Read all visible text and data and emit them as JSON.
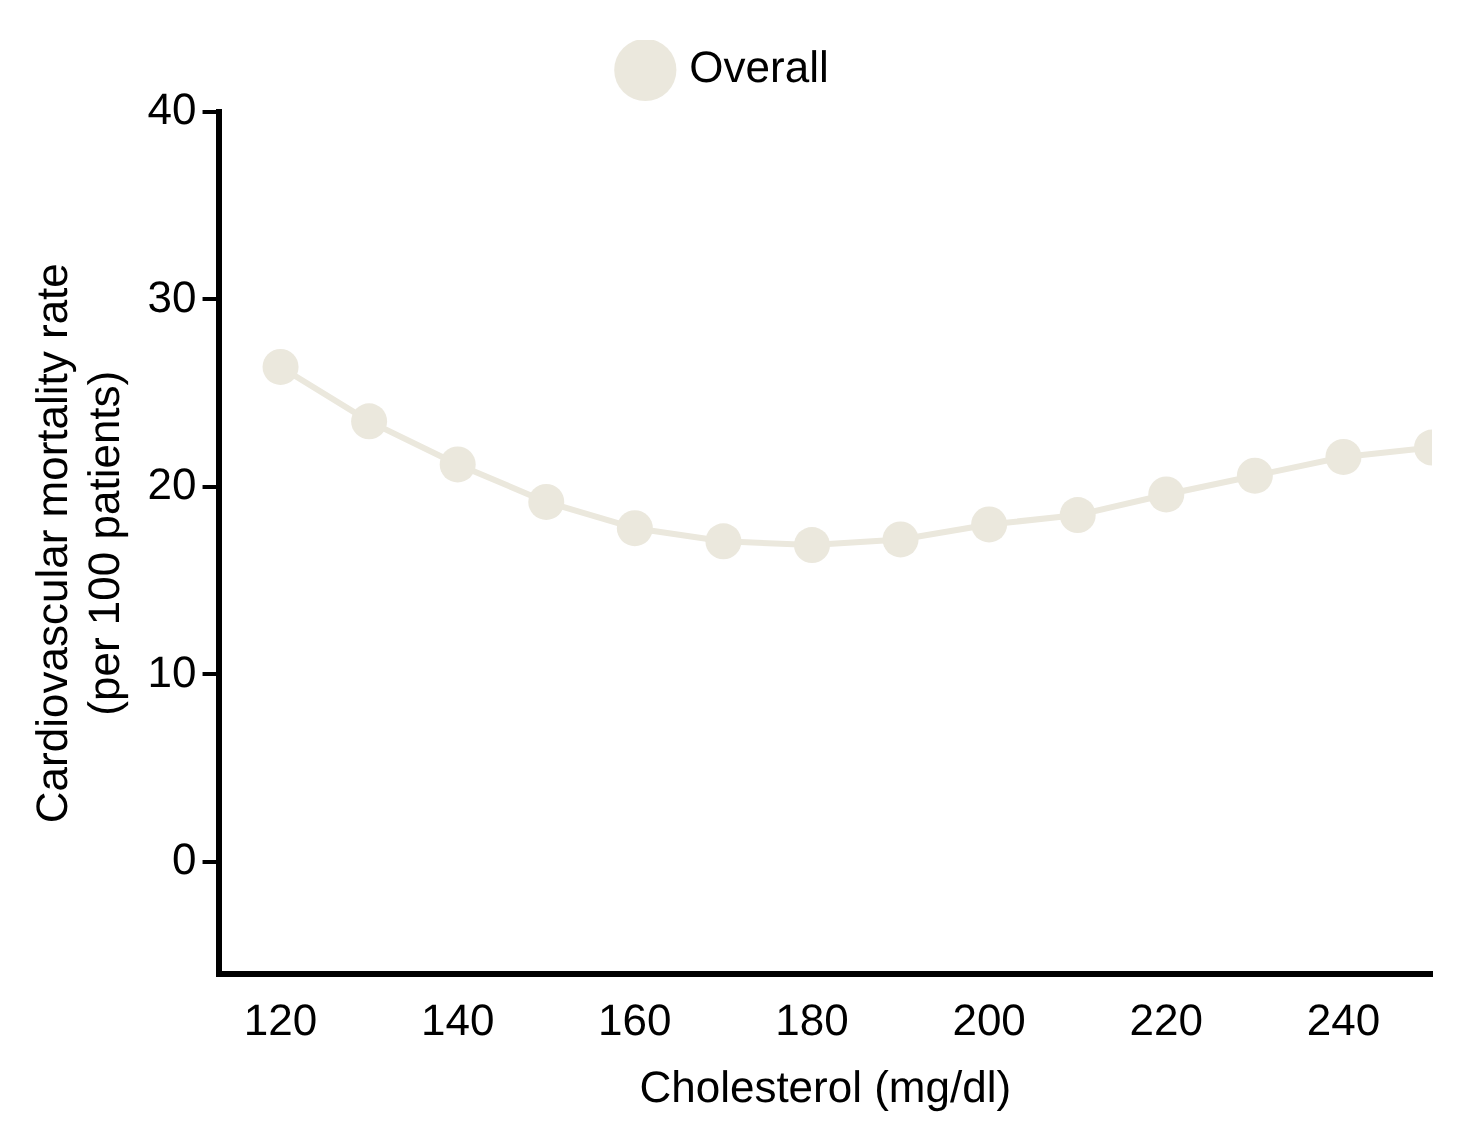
{
  "chart_data": {
    "type": "line",
    "xlabel": "Cholesterol (mg/dl)",
    "ylabel": "Cardiovascular mortality rate\n(per 100 patients)",
    "x": [
      120,
      130,
      140,
      150,
      160,
      170,
      180,
      190,
      200,
      210,
      220,
      230,
      240,
      250
    ],
    "series": [
      {
        "name": "Overall",
        "color": "#ebe8dd",
        "values": [
          26.4,
          23.5,
          21.2,
          19.2,
          17.8,
          17.1,
          16.9,
          17.2,
          18.0,
          18.5,
          19.6,
          20.6,
          21.6,
          22.1
        ]
      }
    ],
    "xlim": [
      113,
      250
    ],
    "xticks": [
      120,
      140,
      160,
      180,
      200,
      220,
      240
    ],
    "ylim": [
      -6,
      40
    ],
    "yticks": [
      0,
      10,
      20,
      30,
      40
    ],
    "grid": false,
    "legend": "top",
    "marker": "circle",
    "line_style": "solid"
  }
}
